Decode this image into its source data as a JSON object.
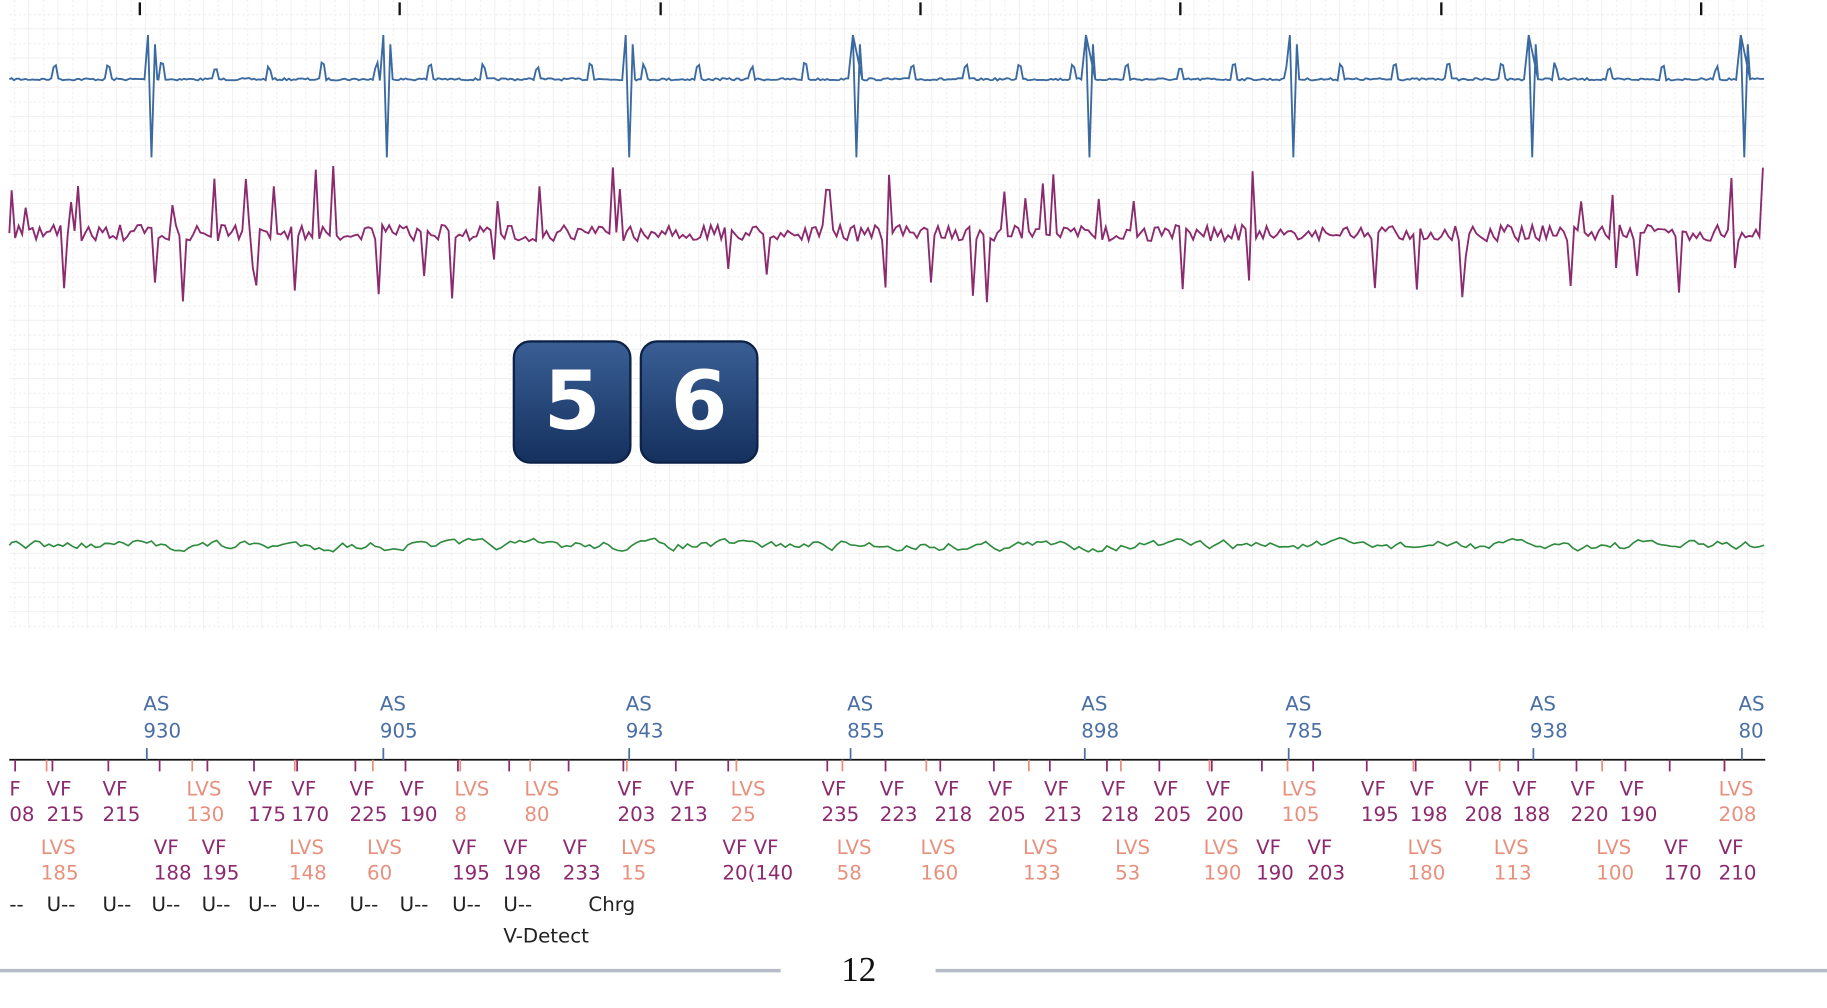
{
  "atrial_markers": [
    {
      "label": "AS",
      "interval": 930
    },
    {
      "label": "AS",
      "interval": 905
    },
    {
      "label": "AS",
      "interval": 943
    },
    {
      "label": "AS",
      "interval": 855
    },
    {
      "label": "AS",
      "interval": 898
    },
    {
      "label": "AS",
      "interval": 785
    },
    {
      "label": "AS",
      "interval": 938
    },
    {
      "label": "AS",
      "interval": 80
    }
  ],
  "ventricular_markers_row1": [
    {
      "label": "F",
      "value": "08"
    },
    {
      "label": "VF",
      "value": 215
    },
    {
      "label": "VF",
      "value": 215
    },
    {
      "label": "LVS",
      "value": 130
    },
    {
      "label": "VF",
      "value": 175
    },
    {
      "label": "VF",
      "value": 170
    },
    {
      "label": "VF",
      "value": 225
    },
    {
      "label": "VF",
      "value": 190
    },
    {
      "label": "LVS",
      "value": 8
    },
    {
      "label": "LVS",
      "value": 80
    },
    {
      "label": "VF",
      "value": 203
    },
    {
      "label": "VF",
      "value": 213
    },
    {
      "label": "LVS",
      "value": 25
    },
    {
      "label": "VF",
      "value": 235
    },
    {
      "label": "VF",
      "value": 223
    },
    {
      "label": "VF",
      "value": 218
    },
    {
      "label": "VF",
      "value": 205
    },
    {
      "label": "VF",
      "value": 213
    },
    {
      "label": "VF",
      "value": 218
    },
    {
      "label": "VF",
      "value": 205
    },
    {
      "label": "VF",
      "value": 200
    },
    {
      "label": "LVS",
      "value": 105
    },
    {
      "label": "VF",
      "value": 195
    },
    {
      "label": "VF",
      "value": 198
    },
    {
      "label": "VF",
      "value": 208
    },
    {
      "label": "VF",
      "value": 188
    },
    {
      "label": "VF",
      "value": 220
    },
    {
      "label": "VF",
      "value": 190
    },
    {
      "label": "LVS",
      "value": 208
    }
  ],
  "ventricular_markers_row2": [
    {
      "label": "LVS",
      "value": 185
    },
    {
      "label": "VF",
      "value": 188
    },
    {
      "label": "VF",
      "value": 195
    },
    {
      "label": "LVS",
      "value": 148
    },
    {
      "label": "LVS",
      "value": 60
    },
    {
      "label": "VF",
      "value": 195
    },
    {
      "label": "VF",
      "value": 198
    },
    {
      "label": "VF",
      "value": 233
    },
    {
      "label": "LVS",
      "value": 15
    },
    {
      "label": "VF VF",
      "value": "20(140"
    },
    {
      "label": "LVS",
      "value": 58
    },
    {
      "label": "LVS",
      "value": 160
    },
    {
      "label": "LVS",
      "value": 133
    },
    {
      "label": "LVS",
      "value": 53
    },
    {
      "label": "LVS",
      "value": 190
    },
    {
      "label": "VF",
      "value": 190
    },
    {
      "label": "VF",
      "value": 203
    },
    {
      "label": "LVS",
      "value": 180
    },
    {
      "label": "LVS",
      "value": 113
    },
    {
      "label": "LVS",
      "value": 100
    },
    {
      "label": "VF",
      "value": 170
    },
    {
      "label": "VF",
      "value": 210
    }
  ],
  "status_markers": [
    "--",
    "U--",
    "U--",
    "U--",
    "U--",
    "U--",
    "U--",
    "U--",
    "U--",
    "U--",
    "U--",
    "Chrg"
  ],
  "annotation": "V-Detect",
  "badges": [
    5,
    6
  ],
  "page_number": 12
}
